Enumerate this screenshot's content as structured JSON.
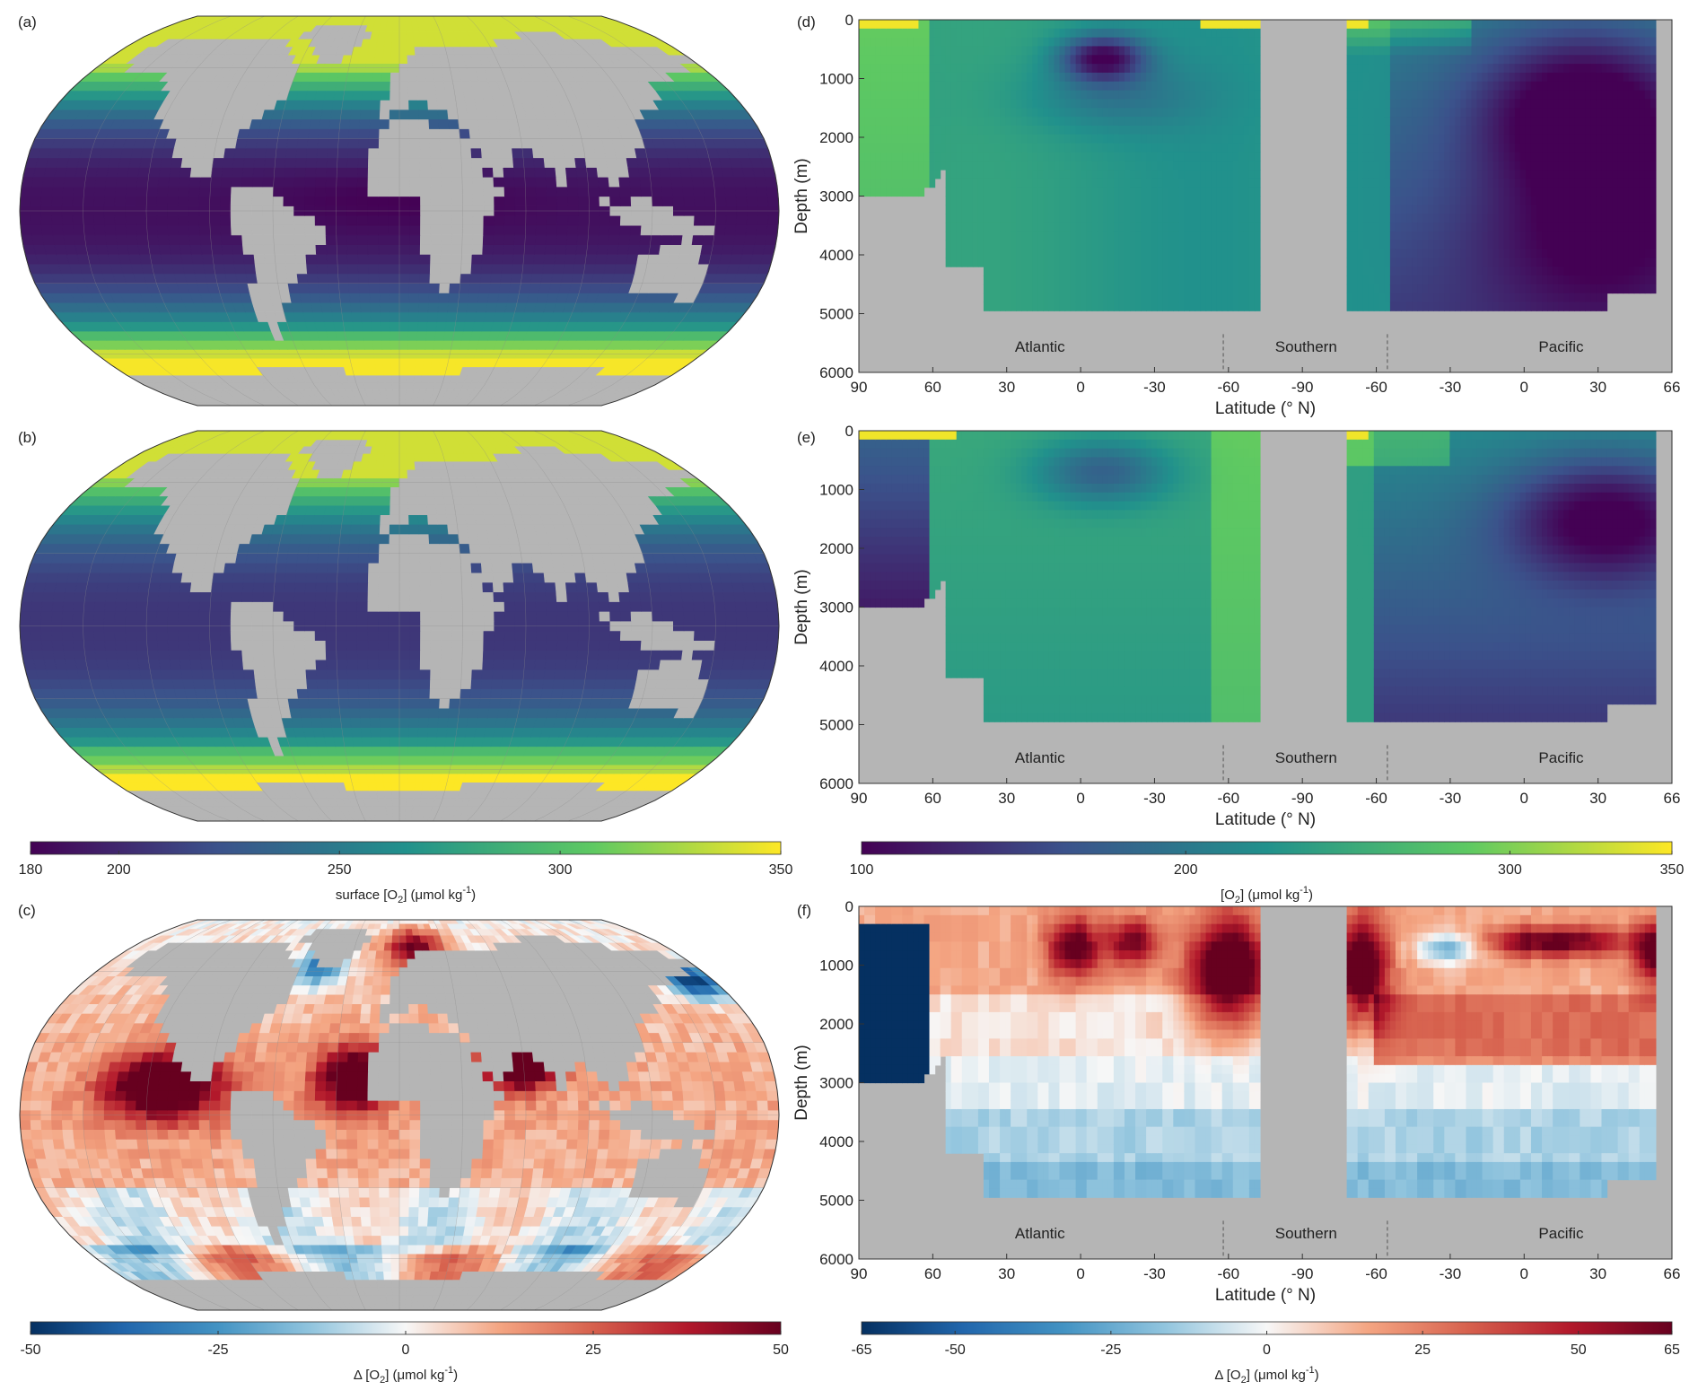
{
  "chart_data": [
    {
      "panel": "(a)",
      "type": "heatmap",
      "projection": "robinson",
      "description_values": "surface dissolved oxygen field over ocean grid cells; land masked grey",
      "colormap": [
        "#440154",
        "#3b528b",
        "#21918c",
        "#5ec962",
        "#fde725"
      ],
      "land_color": "#b5b5b5",
      "clim": [
        180,
        350
      ]
    },
    {
      "panel": "(b)",
      "type": "heatmap",
      "projection": "robinson",
      "colormap": [
        "#440154",
        "#3b528b",
        "#21918c",
        "#5ec962",
        "#fde725"
      ],
      "land_color": "#b5b5b5",
      "clim": [
        180,
        350
      ],
      "colorbar": {
        "label_pre": "surface [O",
        "label_sub": "2",
        "label_post": "] (μmol kg",
        "label_sup": "-1",
        "label_end": ")",
        "ticks": [
          180,
          200,
          250,
          300,
          350
        ]
      }
    },
    {
      "panel": "(c)",
      "type": "heatmap",
      "projection": "robinson",
      "colormap": [
        "#053061",
        "#2166ac",
        "#4393c3",
        "#92c5de",
        "#f7f7f7",
        "#f4a582",
        "#d6604d",
        "#b2182b",
        "#67001f"
      ],
      "land_color": "#b5b5b5",
      "clim": [
        -50,
        50
      ],
      "colorbar": {
        "label_pre": "Δ [O",
        "label_sub": "2",
        "label_post": "] (μmol kg",
        "label_sup": "-1",
        "label_end": ")",
        "ticks": [
          -50,
          -25,
          0,
          25,
          50
        ]
      }
    },
    {
      "panel": "(d)",
      "type": "heatmap",
      "ylabel": "Depth (m)",
      "xlabel": "Latitude (° N)",
      "yticks": [
        0,
        1000,
        2000,
        3000,
        4000,
        5000,
        6000
      ],
      "xticks": [
        "90",
        "60",
        "30",
        "0",
        "-30",
        "-60",
        "-90",
        "-60",
        "-30",
        "0",
        "30",
        "66"
      ],
      "basins": [
        "Atlantic",
        "Southern",
        "Pacific"
      ],
      "clim": [
        100,
        350
      ]
    },
    {
      "panel": "(e)",
      "type": "heatmap",
      "ylabel": "Depth (m)",
      "xlabel": "Latitude (° N)",
      "yticks": [
        0,
        1000,
        2000,
        3000,
        4000,
        5000,
        6000
      ],
      "xticks": [
        "90",
        "60",
        "30",
        "0",
        "-30",
        "-60",
        "-90",
        "-60",
        "-30",
        "0",
        "30",
        "66"
      ],
      "basins": [
        "Atlantic",
        "Southern",
        "Pacific"
      ],
      "clim": [
        100,
        350
      ],
      "colorbar": {
        "label_pre": "[O",
        "label_sub": "2",
        "label_post": "] (μmol kg",
        "label_sup": "-1",
        "label_end": ")",
        "ticks": [
          100,
          200,
          300,
          350
        ]
      }
    },
    {
      "panel": "(f)",
      "type": "heatmap",
      "ylabel": "Depth (m)",
      "xlabel": "Latitude (° N)",
      "yticks": [
        0,
        1000,
        2000,
        3000,
        4000,
        5000,
        6000
      ],
      "xticks": [
        "90",
        "60",
        "30",
        "0",
        "-30",
        "-60",
        "-90",
        "-60",
        "-30",
        "0",
        "30",
        "66"
      ],
      "basins": [
        "Atlantic",
        "Southern",
        "Pacific"
      ],
      "clim": [
        -65,
        65
      ],
      "colorbar": {
        "label_pre": "Δ [O",
        "label_sub": "2",
        "label_post": "] (μmol kg",
        "label_sup": "-1",
        "label_end": ")",
        "ticks": [
          -65,
          -50,
          -25,
          0,
          25,
          50,
          65
        ]
      }
    }
  ]
}
